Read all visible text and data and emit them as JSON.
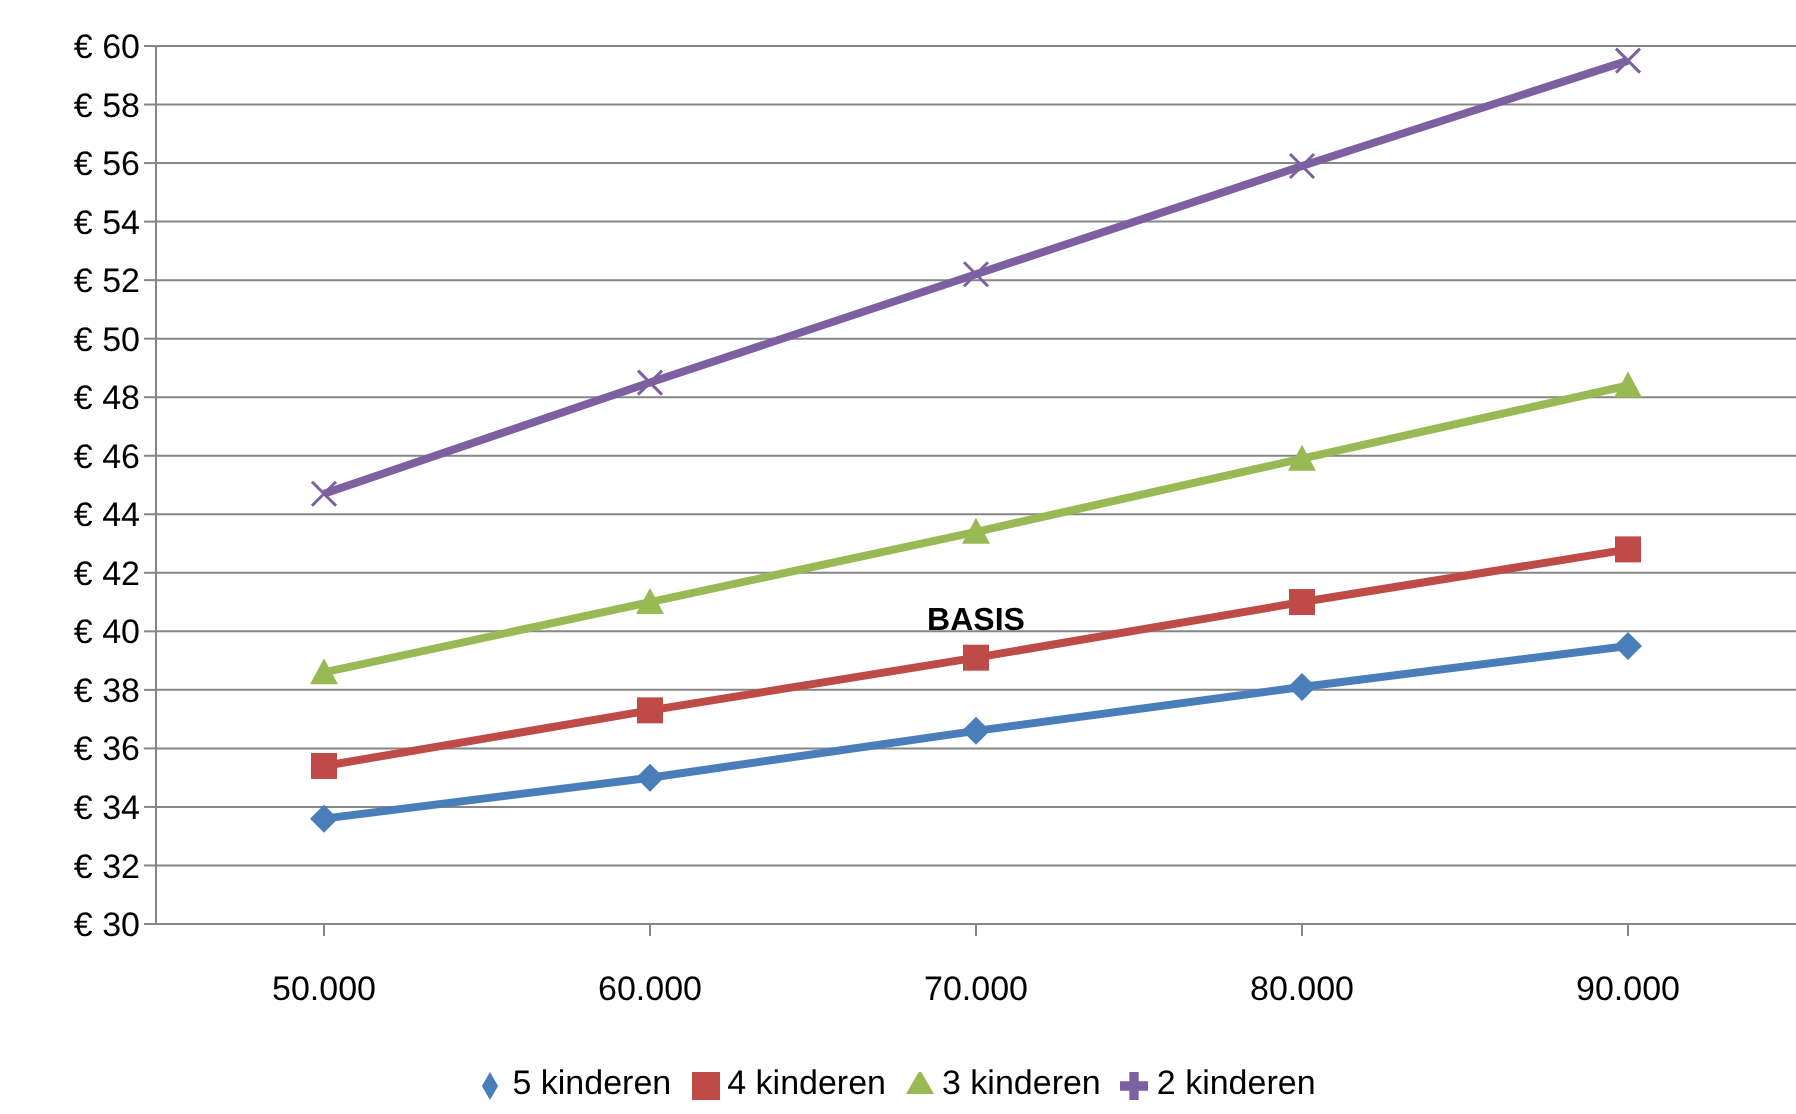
{
  "chart_data": {
    "type": "line",
    "categories": [
      "50.000",
      "60.000",
      "70.000",
      "80.000",
      "90.000"
    ],
    "series": [
      {
        "name": "5 kinderen",
        "color": "#4a7ebb",
        "marker": "diamond",
        "values": [
          33.6,
          35.0,
          36.6,
          38.1,
          39.5
        ]
      },
      {
        "name": "4 kinderen",
        "color": "#be4b48",
        "marker": "square",
        "values": [
          35.4,
          37.3,
          39.1,
          41.0,
          42.8
        ]
      },
      {
        "name": "3 kinderen",
        "color": "#98b954",
        "marker": "triangle",
        "values": [
          38.6,
          41.0,
          43.4,
          45.9,
          48.4
        ]
      },
      {
        "name": "2 kinderen",
        "color": "#7d60a0",
        "marker": "cross",
        "values": [
          44.7,
          48.5,
          52.2,
          55.9,
          59.5
        ]
      }
    ],
    "ylim": [
      30,
      60
    ],
    "yticks": [
      {
        "value": 30,
        "label": "€ 30"
      },
      {
        "value": 32,
        "label": "€ 32"
      },
      {
        "value": 34,
        "label": "€ 34"
      },
      {
        "value": 36,
        "label": "€ 36"
      },
      {
        "value": 38,
        "label": "€ 38"
      },
      {
        "value": 40,
        "label": "€ 40"
      },
      {
        "value": 42,
        "label": "€ 42"
      },
      {
        "value": 44,
        "label": "€ 44"
      },
      {
        "value": 46,
        "label": "€ 46"
      },
      {
        "value": 48,
        "label": "€ 48"
      },
      {
        "value": 50,
        "label": "€ 50"
      },
      {
        "value": 52,
        "label": "€ 52"
      },
      {
        "value": 54,
        "label": "€ 54"
      },
      {
        "value": 56,
        "label": "€ 56"
      },
      {
        "value": 58,
        "label": "€ 58"
      },
      {
        "value": 60,
        "label": "€ 60"
      }
    ],
    "grid": "y",
    "legend": "bottom",
    "line_style": "solid",
    "annotations": [
      {
        "text": "BASIS",
        "x": "70.000",
        "y": 39.1
      }
    ]
  }
}
